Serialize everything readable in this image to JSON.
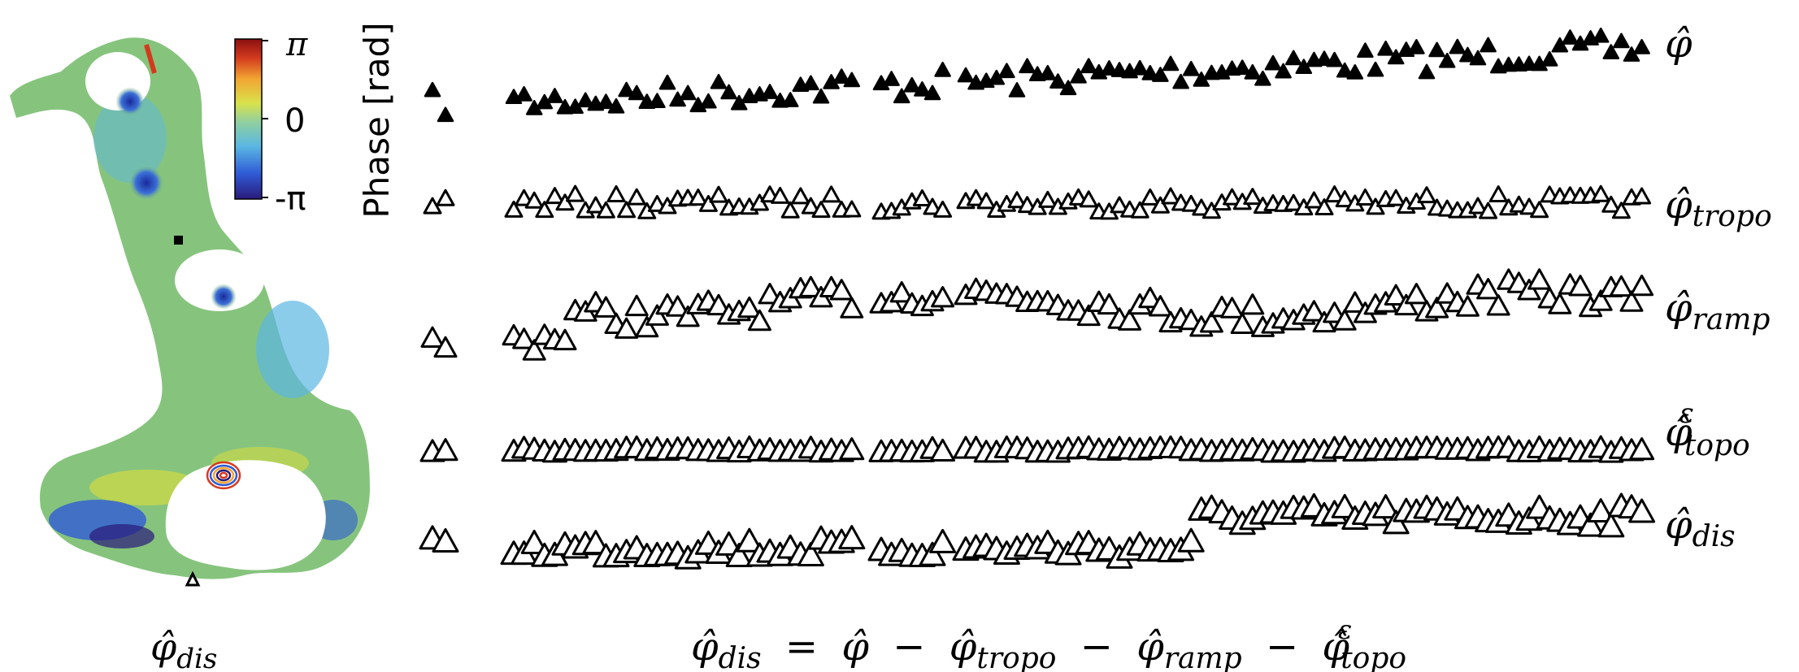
{
  "colorbar": {
    "title": "Phase [rad]",
    "tick_top": "π",
    "tick_mid": "0",
    "tick_bottom": "-π",
    "colors": [
      "#2a1a7a",
      "#2f5bd6",
      "#5bb7e3",
      "#8fd0a0",
      "#d9e24a",
      "#f2a533",
      "#d43b1e",
      "#8a0f0f"
    ]
  },
  "map": {
    "caption": {
      "main": "φ̂",
      "sub": "dis"
    },
    "land_color": "#86c47d",
    "marker_square": "reference-pixel",
    "marker_triangle": "time-series-pixel"
  },
  "rows": [
    {
      "id": "phi",
      "label_main": "φ̂",
      "label_sub": "",
      "label_sup": "",
      "marker": "filled-triangle"
    },
    {
      "id": "tropo",
      "label_main": "φ̂",
      "label_sub": "tropo",
      "label_sup": "",
      "marker": "open-triangle-small"
    },
    {
      "id": "ramp",
      "label_main": "φ̂",
      "label_sub": "ramp",
      "label_sup": "",
      "marker": "open-triangle-medium"
    },
    {
      "id": "topo",
      "label_main": "φ̂",
      "label_sub": "topo",
      "label_sup": "ε",
      "marker": "open-triangle-large"
    },
    {
      "id": "dis",
      "label_main": "φ̂",
      "label_sub": "dis",
      "label_sup": "",
      "marker": "open-triangle-large"
    }
  ],
  "equation": {
    "lhs_main": "φ̂",
    "lhs_sub": "dis",
    "eq": "=",
    "t1_main": "φ̂",
    "minus": "−",
    "t2_main": "φ̂",
    "t2_sub": "tropo",
    "t3_main": "φ̂",
    "t3_sub": "ramp",
    "t4_main": "φ̂",
    "t4_sub": "topo",
    "t4_sup": "ε"
  }
}
